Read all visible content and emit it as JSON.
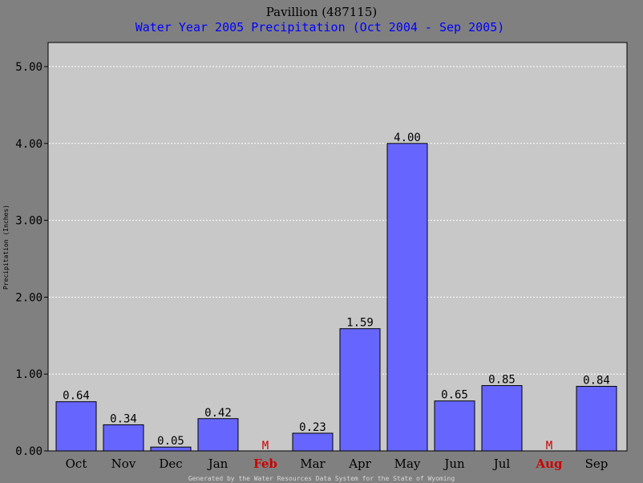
{
  "chart_data": {
    "type": "bar",
    "title": "Pavillion (487115)",
    "subtitle": "Water Year 2005 Precipitation (Oct 2004 - Sep 2005)",
    "ylabel": "Precipitation (Inches)",
    "xlabel": "",
    "ylim": [
      0,
      5.3
    ],
    "yticks": [
      "0.00",
      "1.00",
      "2.00",
      "3.00",
      "4.00",
      "5.00"
    ],
    "grid": true,
    "categories": [
      "Oct",
      "Nov",
      "Dec",
      "Jan",
      "Feb",
      "Mar",
      "Apr",
      "May",
      "Jun",
      "Jul",
      "Aug",
      "Sep"
    ],
    "values": [
      0.64,
      0.34,
      0.05,
      0.42,
      null,
      0.23,
      1.59,
      4.0,
      0.65,
      0.85,
      null,
      0.84
    ],
    "value_labels": [
      "0.64",
      "0.34",
      "0.05",
      "0.42",
      "M",
      "0.23",
      "1.59",
      "4.00",
      "0.65",
      "0.85",
      "M",
      "0.84"
    ],
    "missing_marker": "M",
    "footer": "Generated by the Water Resources Data System for the State of Wyoming",
    "colors": {
      "bar": "#6666ff",
      "plot_background": "#c8c8c8",
      "page_background": "#808080",
      "missing": "#cc0000",
      "title": "#000000",
      "subtitle": "#0000ff"
    }
  }
}
